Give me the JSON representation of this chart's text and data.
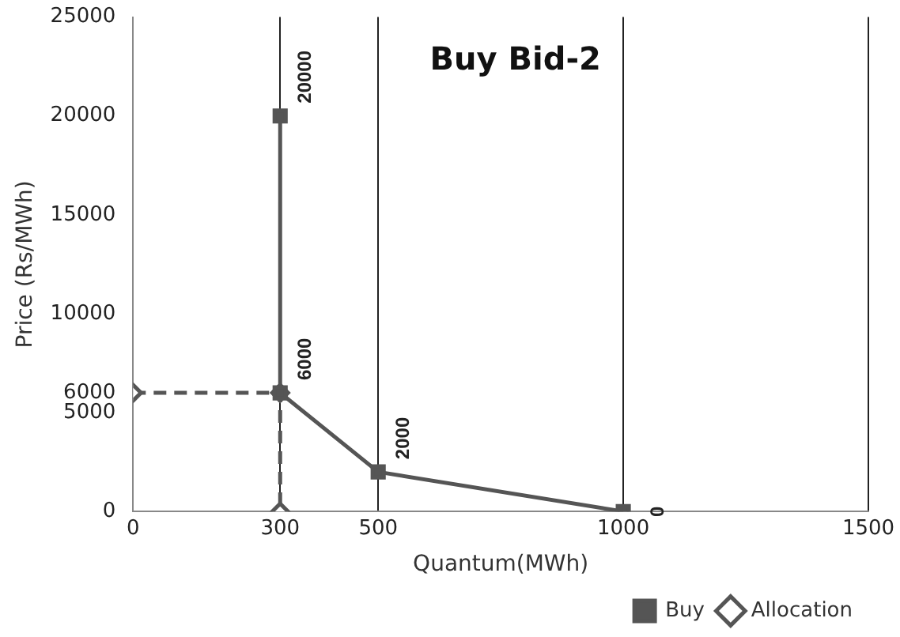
{
  "chart_data": {
    "type": "line",
    "title": "Buy Bid-2",
    "xlabel": "Quantum(MWh)",
    "ylabel": "Price (Rs/MWh)",
    "xlim": [
      0,
      1500
    ],
    "xticks": [
      0,
      300,
      500,
      1000,
      1500
    ],
    "ylim": [
      0,
      25000
    ],
    "yticks": [
      0,
      5000,
      {
        "value": 6000,
        "label": "6000"
      },
      10000,
      15000,
      20000,
      25000
    ],
    "grid": "x",
    "legend": "bottom right",
    "series": [
      {
        "name": "Buy",
        "color": "#555555",
        "x": [
          300,
          300,
          500,
          1000
        ],
        "values": [
          20000,
          6000,
          2000,
          0
        ],
        "marker": "square",
        "line_style": "solid",
        "value_labels": [
          "20000",
          "6000",
          "2000",
          "0"
        ]
      },
      {
        "name": "Allocation",
        "color": "#555555",
        "x": [
          0,
          300,
          300
        ],
        "values": [
          6000,
          6000,
          0
        ],
        "marker": "diamond",
        "line_style": "dashed"
      }
    ]
  }
}
